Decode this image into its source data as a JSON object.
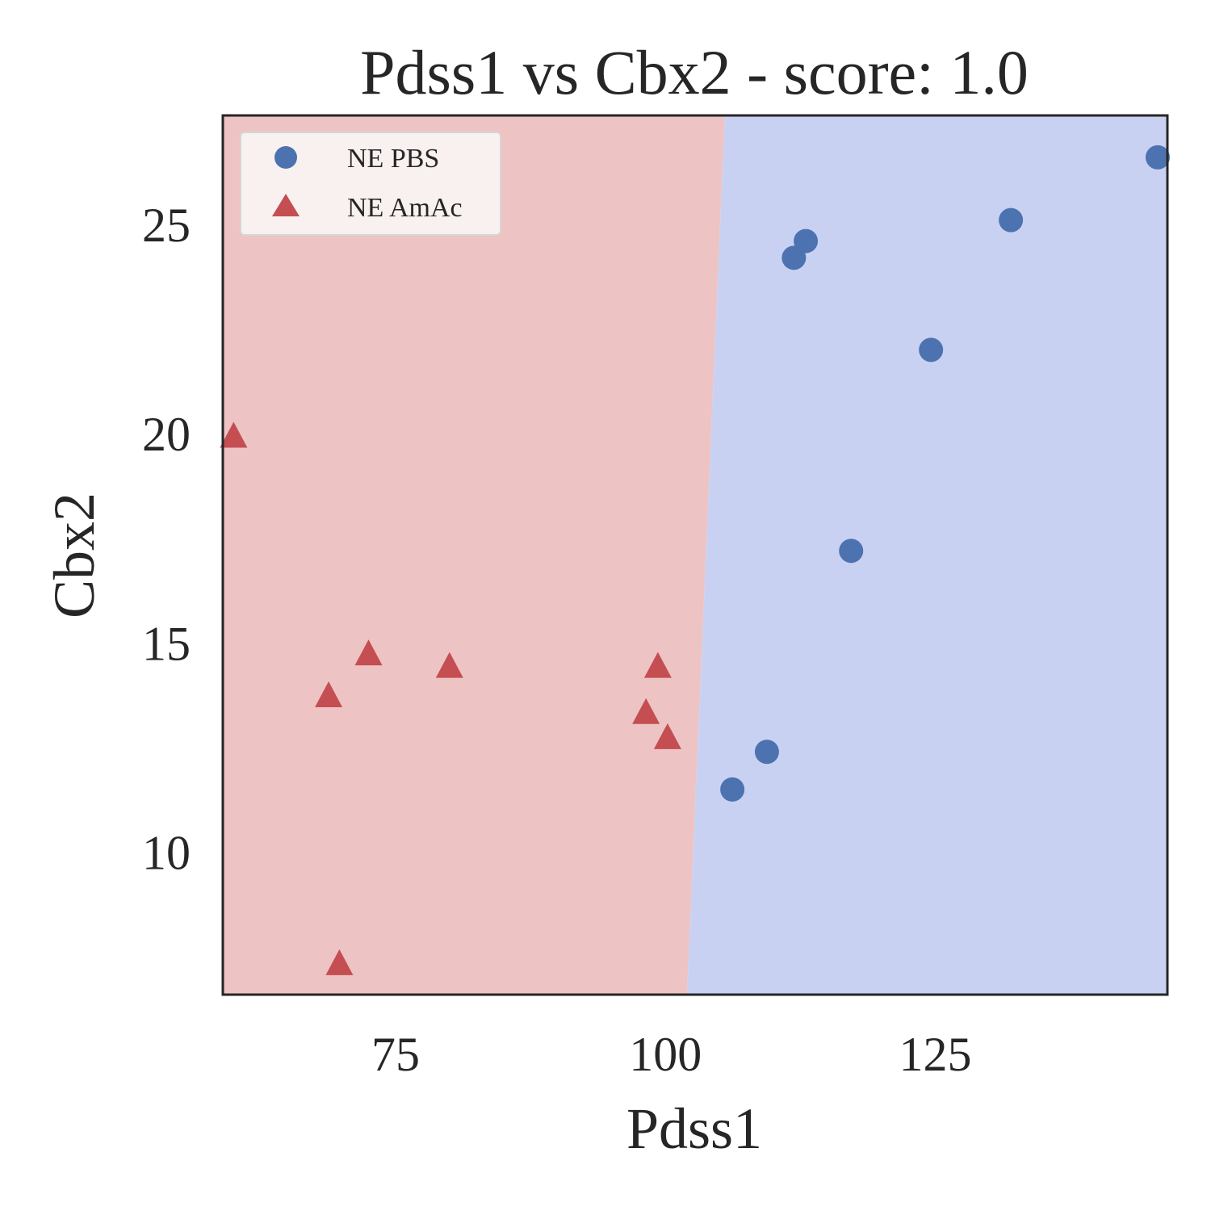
{
  "chart_data": {
    "type": "scatter",
    "title": "Pdss1 vs Cbx2 - score: 1.0",
    "xlabel": "Pdss1",
    "ylabel": "Cbx2",
    "xlim": [
      59,
      146.5
    ],
    "ylim": [
      6.6,
      27.6
    ],
    "xticks": [
      75,
      100,
      125
    ],
    "yticks": [
      10,
      15,
      20,
      25
    ],
    "grid": false,
    "legend_position": "top-left",
    "decision_boundary": {
      "x_at_ymin": 102.0,
      "x_at_ymax": 105.5,
      "left_region": "NE AmAc",
      "right_region": "NE PBS"
    },
    "series": [
      {
        "name": "NE PBS",
        "marker": "circle",
        "color": "#4c72b0",
        "region_color": "#c9d1f2",
        "points": [
          [
            106.2,
            11.5
          ],
          [
            109.4,
            12.4
          ],
          [
            111.9,
            24.2
          ],
          [
            113.0,
            24.6
          ],
          [
            117.2,
            17.2
          ],
          [
            124.6,
            22.0
          ],
          [
            132.0,
            25.1
          ],
          [
            145.6,
            26.6
          ]
        ]
      },
      {
        "name": "NE AmAc",
        "marker": "triangle",
        "color": "#c44e52",
        "region_color": "#edc4c3",
        "points": [
          [
            60.0,
            19.9
          ],
          [
            68.8,
            13.7
          ],
          [
            69.8,
            7.3
          ],
          [
            72.5,
            14.7
          ],
          [
            80.0,
            14.4
          ],
          [
            98.2,
            13.3
          ],
          [
            99.3,
            14.4
          ],
          [
            100.2,
            12.7
          ]
        ]
      }
    ]
  }
}
